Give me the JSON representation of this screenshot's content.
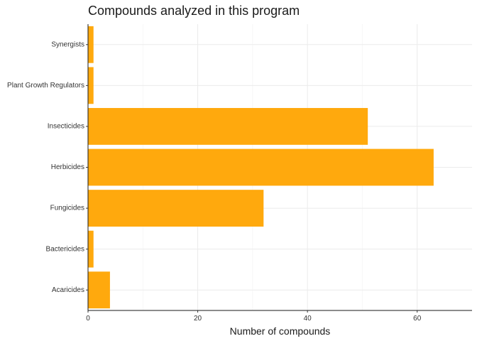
{
  "chart_data": {
    "type": "bar",
    "orientation": "horizontal",
    "title": "Compounds analyzed in this program",
    "xlabel": "Number of compounds",
    "ylabel": "",
    "categories": [
      "Acaricides",
      "Bactericides",
      "Fungicides",
      "Herbicides",
      "Insecticides",
      "Plant Growth Regulators",
      "Synergists"
    ],
    "values": [
      4,
      1,
      32,
      63,
      51,
      1,
      1
    ],
    "xlim": [
      0,
      70
    ],
    "xticks": [
      0,
      20,
      40,
      60
    ],
    "grid": true,
    "bar_color": "#FFA90D"
  }
}
